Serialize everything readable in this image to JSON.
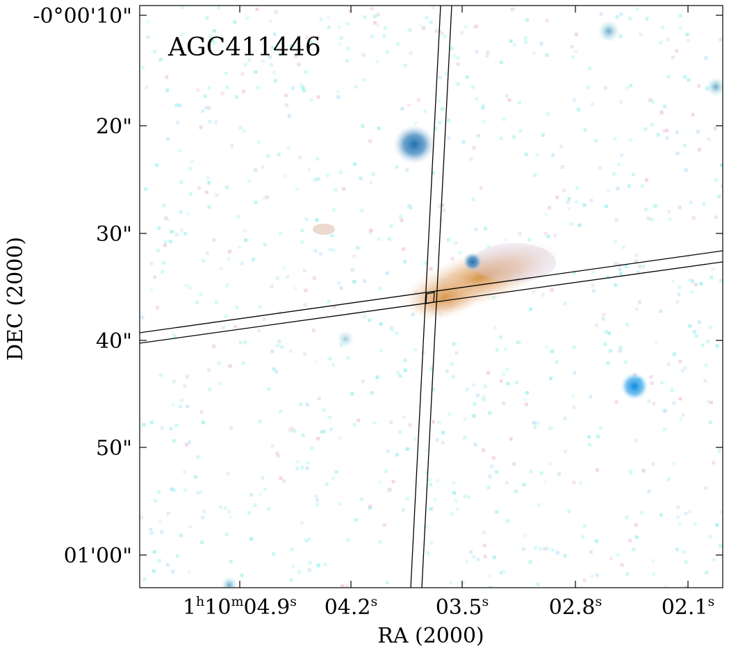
{
  "title": "AGC411446",
  "xlabel": "RA (2000)",
  "ylabel": "DEC (2000)",
  "xticks": [
    {
      "h": "1",
      "hu": "h",
      "m": "10",
      "mu": "m",
      "s": "04.9",
      "su": "s"
    },
    {
      "s": "04.2",
      "su": "s"
    },
    {
      "s": "03.5",
      "su": "s"
    },
    {
      "s": "02.8",
      "su": "s"
    },
    {
      "s": "02.1",
      "su": "s"
    }
  ],
  "yticks": [
    "-0°00'10\"",
    "20\"",
    "30\"",
    "40\"",
    "50\"",
    "01'00\""
  ],
  "colors": {
    "galaxy": "#e0a060",
    "star": "#2a80c8",
    "noise": "#a0f0f0",
    "slit": "#000000"
  }
}
